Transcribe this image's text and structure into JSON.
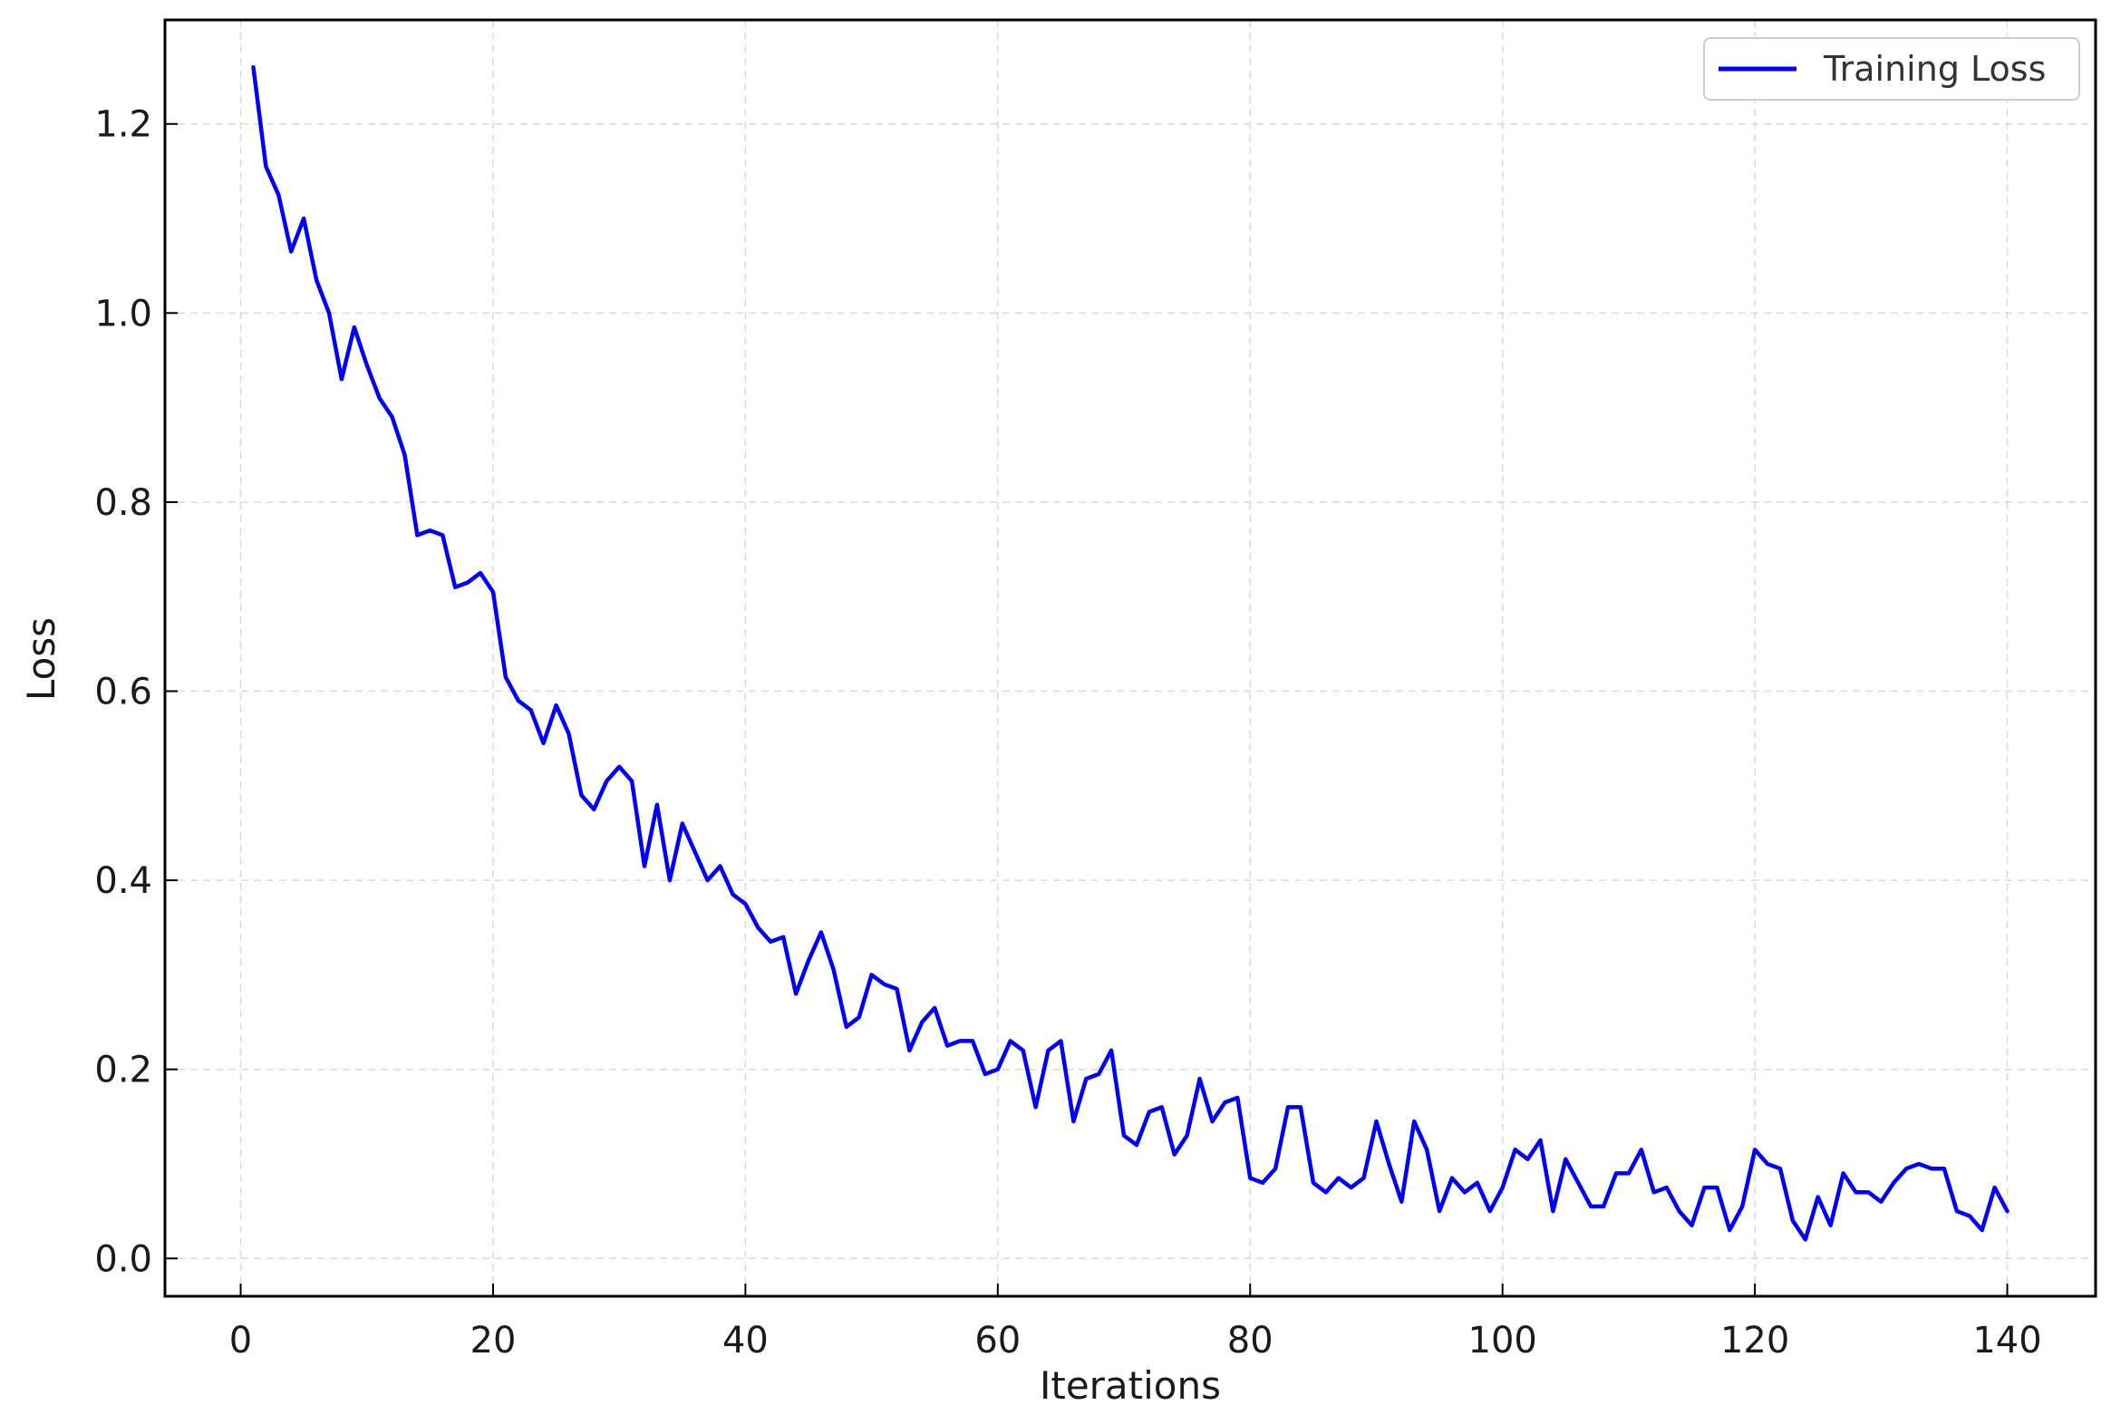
{
  "chart_data": {
    "type": "line",
    "title": "",
    "xlabel": "Iterations",
    "ylabel": "Loss",
    "xlim": [
      -6,
      147
    ],
    "ylim": [
      -0.04,
      1.31
    ],
    "x_ticks": [
      0,
      20,
      40,
      60,
      80,
      100,
      120,
      140
    ],
    "y_ticks": [
      0.0,
      0.2,
      0.4,
      0.6,
      0.8,
      1.0,
      1.2
    ],
    "x_tick_labels": [
      "0",
      "20",
      "40",
      "60",
      "80",
      "100",
      "120",
      "140"
    ],
    "y_tick_labels": [
      "0.0",
      "0.2",
      "0.4",
      "0.6",
      "0.8",
      "1.0",
      "1.2"
    ],
    "grid": true,
    "legend_position": "top-right",
    "series": [
      {
        "name": "Training Loss",
        "color": "#0000ff",
        "x": [
          1,
          2,
          3,
          4,
          5,
          6,
          7,
          8,
          9,
          10,
          11,
          12,
          13,
          14,
          15,
          16,
          17,
          18,
          19,
          20,
          21,
          22,
          23,
          24,
          25,
          26,
          27,
          28,
          29,
          30,
          31,
          32,
          33,
          34,
          35,
          36,
          37,
          38,
          39,
          40,
          41,
          42,
          43,
          44,
          45,
          46,
          47,
          48,
          49,
          50,
          51,
          52,
          53,
          54,
          55,
          56,
          57,
          58,
          59,
          60,
          61,
          62,
          63,
          64,
          65,
          66,
          67,
          68,
          69,
          70,
          71,
          72,
          73,
          74,
          75,
          76,
          77,
          78,
          79,
          80,
          81,
          82,
          83,
          84,
          85,
          86,
          87,
          88,
          89,
          90,
          91,
          92,
          93,
          94,
          95,
          96,
          97,
          98,
          99,
          100,
          101,
          102,
          103,
          104,
          105,
          106,
          107,
          108,
          109,
          110,
          111,
          112,
          113,
          114,
          115,
          116,
          117,
          118,
          119,
          120,
          121,
          122,
          123,
          124,
          125,
          126,
          127,
          128,
          129,
          130,
          131,
          132,
          133,
          134,
          135,
          136,
          137,
          138,
          139,
          140
        ],
        "values": [
          1.26,
          1.155,
          1.125,
          1.065,
          1.1,
          1.035,
          1.0,
          0.93,
          0.985,
          0.945,
          0.91,
          0.89,
          0.85,
          0.765,
          0.77,
          0.765,
          0.71,
          0.715,
          0.725,
          0.705,
          0.615,
          0.59,
          0.58,
          0.545,
          0.585,
          0.555,
          0.49,
          0.475,
          0.505,
          0.52,
          0.505,
          0.415,
          0.48,
          0.4,
          0.46,
          0.43,
          0.4,
          0.415,
          0.385,
          0.375,
          0.35,
          0.335,
          0.34,
          0.28,
          0.315,
          0.345,
          0.305,
          0.245,
          0.255,
          0.3,
          0.29,
          0.285,
          0.22,
          0.25,
          0.265,
          0.225,
          0.23,
          0.23,
          0.195,
          0.2,
          0.23,
          0.22,
          0.16,
          0.22,
          0.23,
          0.145,
          0.19,
          0.195,
          0.22,
          0.13,
          0.12,
          0.155,
          0.16,
          0.11,
          0.13,
          0.19,
          0.145,
          0.165,
          0.17,
          0.085,
          0.08,
          0.095,
          0.16,
          0.16,
          0.08,
          0.07,
          0.085,
          0.075,
          0.085,
          0.145,
          0.1,
          0.06,
          0.145,
          0.115,
          0.05,
          0.085,
          0.07,
          0.08,
          0.05,
          0.075,
          0.115,
          0.105,
          0.125,
          0.05,
          0.105,
          0.08,
          0.055,
          0.055,
          0.09,
          0.09,
          0.115,
          0.07,
          0.075,
          0.05,
          0.035,
          0.075,
          0.075,
          0.03,
          0.055,
          0.115,
          0.1,
          0.095,
          0.04,
          0.02,
          0.065,
          0.035,
          0.09,
          0.07,
          0.07,
          0.06,
          0.08,
          0.095,
          0.1,
          0.095,
          0.095,
          0.05,
          0.045,
          0.03,
          0.075,
          0.05
        ]
      }
    ]
  }
}
